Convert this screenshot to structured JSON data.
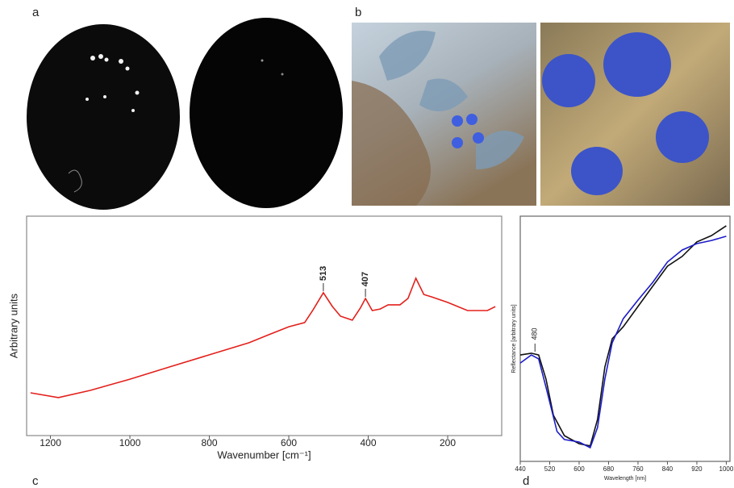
{
  "panel_labels": [
    "a",
    "b",
    "c",
    "d"
  ],
  "chart_data": [
    {
      "type": "line",
      "xlabel": "Wavenumber [cm⁻¹]",
      "ylabel": "Arbitrary units",
      "xlim": [
        1260,
        64
      ],
      "ylim": [
        0,
        10
      ],
      "xticks": [
        1200,
        1000,
        800,
        600,
        400,
        200
      ],
      "series": [
        {
          "color": "#e3201b",
          "x": [
            1250,
            1180,
            1100,
            1000,
            900,
            800,
            700,
            650,
            600,
            560,
            540,
            513,
            490,
            470,
            440,
            420,
            407,
            390,
            370,
            350,
            320,
            300,
            280,
            260,
            240,
            200,
            150,
            100,
            80
          ],
          "values": [
            1.95,
            1.73,
            2.06,
            2.57,
            3.13,
            3.68,
            4.23,
            4.6,
            4.96,
            5.15,
            5.7,
            6.51,
            5.88,
            5.44,
            5.26,
            5.81,
            6.25,
            5.7,
            5.77,
            5.96,
            5.96,
            6.25,
            7.17,
            6.43,
            6.32,
            6.07,
            5.7,
            5.7,
            5.88
          ]
        }
      ],
      "annotations": [
        {
          "text": "513",
          "x": 513
        },
        {
          "text": "407",
          "x": 407
        }
      ]
    },
    {
      "type": "line",
      "xlabel": "Wavelength [nm]",
      "ylabel": "Reflectance [arbitrary units]",
      "xlim": [
        440,
        1010
      ],
      "ylim": [
        0,
        10
      ],
      "xticks": [
        440,
        520,
        600,
        680,
        760,
        840,
        920,
        1000
      ],
      "series": [
        {
          "color": "#111111",
          "x": [
            440,
            470,
            490,
            510,
            530,
            560,
            600,
            630,
            650,
            670,
            690,
            720,
            760,
            800,
            840,
            880,
            920,
            960,
            1000
          ],
          "values": [
            4.34,
            4.41,
            4.34,
            3.36,
            1.88,
            1.05,
            0.72,
            0.63,
            1.71,
            3.85,
            5.0,
            5.49,
            6.32,
            7.14,
            7.96,
            8.36,
            8.95,
            9.21,
            9.61
          ]
        },
        {
          "color": "#1c1cc8",
          "x": [
            440,
            470,
            490,
            510,
            540,
            560,
            600,
            630,
            650,
            670,
            690,
            720,
            760,
            800,
            840,
            880,
            920,
            960,
            1000
          ],
          "values": [
            4.01,
            4.34,
            4.18,
            3.03,
            1.22,
            0.89,
            0.79,
            0.56,
            1.38,
            3.36,
            4.84,
            5.82,
            6.58,
            7.3,
            8.13,
            8.62,
            8.88,
            9.01,
            9.18
          ]
        }
      ],
      "annotations": [
        {
          "text": "480",
          "x": 480
        }
      ]
    }
  ]
}
